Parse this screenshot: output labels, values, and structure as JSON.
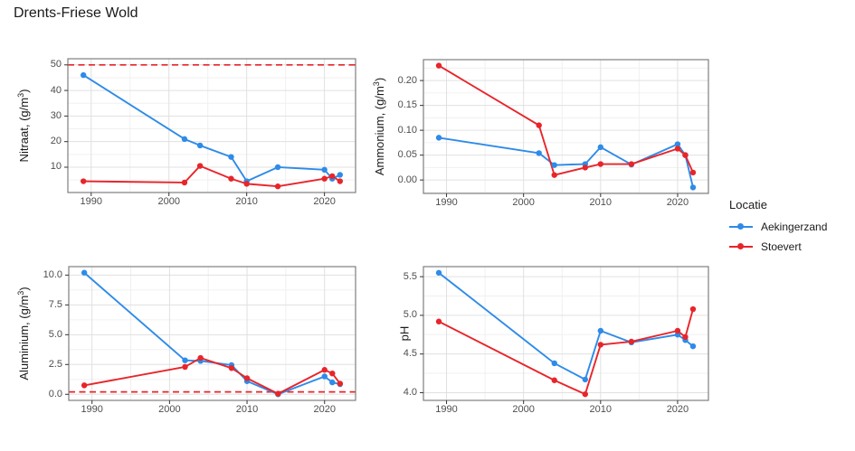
{
  "title": "Drents-Friese Wold",
  "colors": {
    "aekingerzand": "#2E8BE8",
    "stoevert": "#E8252A",
    "reference_line": "#E8252A",
    "grid_major": "#E0E0E0",
    "grid_minor": "#F0F0F0",
    "panel_border": "#7F7F7F",
    "tick_mark": "#333333",
    "tick_text": "#4D4D4D"
  },
  "legend": {
    "title": "Locatie",
    "items": [
      {
        "id": "aekingerzand",
        "label": "Aekingerzand",
        "color": "#2E8BE8"
      },
      {
        "id": "stoevert",
        "label": "Stoevert",
        "color": "#E8252A"
      }
    ]
  },
  "chart_data": [
    {
      "id": "nitraat",
      "type": "line",
      "ylabel_parts": [
        "Nitraat, (g/m",
        "3",
        ")"
      ],
      "xlabel": "",
      "xlim": [
        1987,
        2024
      ],
      "ylim": [
        0.1,
        52.4
      ],
      "xticks": [
        1990,
        2000,
        2010,
        2020
      ],
      "xtick_labels": [
        "1990",
        "2000",
        "2010",
        "2020"
      ],
      "yticks": [
        10,
        20,
        30,
        40,
        50
      ],
      "ytick_labels": [
        "10",
        "20",
        "30",
        "40",
        "50"
      ],
      "reference_line": 50,
      "series": [
        {
          "name": "Aekingerzand",
          "color": "#2E8BE8",
          "x": [
            1989,
            2002,
            2004,
            2008,
            2010,
            2014,
            2020,
            2021,
            2022
          ],
          "y": [
            46,
            21,
            18.5,
            14,
            4.5,
            10,
            9,
            5.5,
            7
          ]
        },
        {
          "name": "Stoevert",
          "color": "#E8252A",
          "x": [
            1989,
            2002,
            2004,
            2008,
            2010,
            2014,
            2020,
            2021,
            2022
          ],
          "y": [
            4.5,
            4,
            10.5,
            5.5,
            3.5,
            2.5,
            5.5,
            6.5,
            4.5
          ]
        }
      ]
    },
    {
      "id": "ammonium",
      "type": "line",
      "ylabel_parts": [
        "Ammonium, (g/m",
        "3",
        ")"
      ],
      "xlabel": "",
      "xlim": [
        1987,
        2024
      ],
      "ylim": [
        -0.027,
        0.242
      ],
      "xticks": [
        1990,
        2000,
        2010,
        2020
      ],
      "xtick_labels": [
        "1990",
        "2000",
        "2010",
        "2020"
      ],
      "yticks": [
        0,
        0.05,
        0.1,
        0.15,
        0.2
      ],
      "ytick_labels": [
        "0.00",
        "0.05",
        "0.10",
        "0.15",
        "0.20"
      ],
      "reference_line": null,
      "series": [
        {
          "name": "Aekingerzand",
          "color": "#2E8BE8",
          "x": [
            1989,
            2002,
            2004,
            2008,
            2010,
            2014,
            2020,
            2021,
            2022
          ],
          "y": [
            0.085,
            0.054,
            0.03,
            0.032,
            0.066,
            0.031,
            0.072,
            0.05,
            -0.015
          ]
        },
        {
          "name": "Stoevert",
          "color": "#E8252A",
          "x": [
            1989,
            2002,
            2004,
            2008,
            2010,
            2014,
            2020,
            2021,
            2022
          ],
          "y": [
            0.23,
            0.11,
            0.01,
            0.025,
            0.032,
            0.032,
            0.063,
            0.05,
            0.015
          ]
        }
      ]
    },
    {
      "id": "aluminium",
      "type": "line",
      "ylabel_parts": [
        "Aluminium, (g/m",
        "3",
        ")"
      ],
      "xlabel": "",
      "xlim": [
        1987,
        2024
      ],
      "ylim": [
        -0.51,
        10.71
      ],
      "xticks": [
        1990,
        2000,
        2010,
        2020
      ],
      "xtick_labels": [
        "1990",
        "2000",
        "2010",
        "2020"
      ],
      "yticks": [
        0,
        2.5,
        5,
        7.5,
        10
      ],
      "ytick_labels": [
        "0.0",
        "2.5",
        "5.0",
        "7.5",
        "10.0"
      ],
      "reference_line": 0.2,
      "series": [
        {
          "name": "Aekingerzand",
          "color": "#2E8BE8",
          "x": [
            1989,
            2002,
            2004,
            2008,
            2010,
            2014,
            2020,
            2021,
            2022
          ],
          "y": [
            10.2,
            2.85,
            2.8,
            2.45,
            1.1,
            0.0,
            1.5,
            1.0,
            0.85
          ]
        },
        {
          "name": "Stoevert",
          "color": "#E8252A",
          "x": [
            1989,
            2002,
            2004,
            2008,
            2010,
            2014,
            2020,
            2021,
            2022
          ],
          "y": [
            0.75,
            2.3,
            3.05,
            2.2,
            1.35,
            0.05,
            2.05,
            1.75,
            0.9
          ]
        }
      ]
    },
    {
      "id": "ph",
      "type": "line",
      "ylabel_parts": [
        "pH",
        "",
        ""
      ],
      "xlabel": "",
      "xlim": [
        1987,
        2024
      ],
      "ylim": [
        3.9,
        5.63
      ],
      "xticks": [
        1990,
        2000,
        2010,
        2020
      ],
      "xtick_labels": [
        "1990",
        "2000",
        "2010",
        "2020"
      ],
      "yticks": [
        4.0,
        4.5,
        5.0,
        5.5
      ],
      "ytick_labels": [
        "4.0",
        "4.5",
        "5.0",
        "5.5"
      ],
      "reference_line": null,
      "series": [
        {
          "name": "Aekingerzand",
          "color": "#2E8BE8",
          "x": [
            1989,
            2004,
            2008,
            2010,
            2014,
            2020,
            2021,
            2022
          ],
          "y": [
            5.55,
            4.38,
            4.17,
            4.8,
            4.65,
            4.75,
            4.68,
            4.6
          ]
        },
        {
          "name": "Stoevert",
          "color": "#E8252A",
          "x": [
            1989,
            2004,
            2008,
            2010,
            2014,
            2020,
            2021,
            2022
          ],
          "y": [
            4.92,
            4.16,
            3.98,
            4.62,
            4.66,
            4.8,
            4.72,
            5.08
          ]
        }
      ]
    }
  ]
}
